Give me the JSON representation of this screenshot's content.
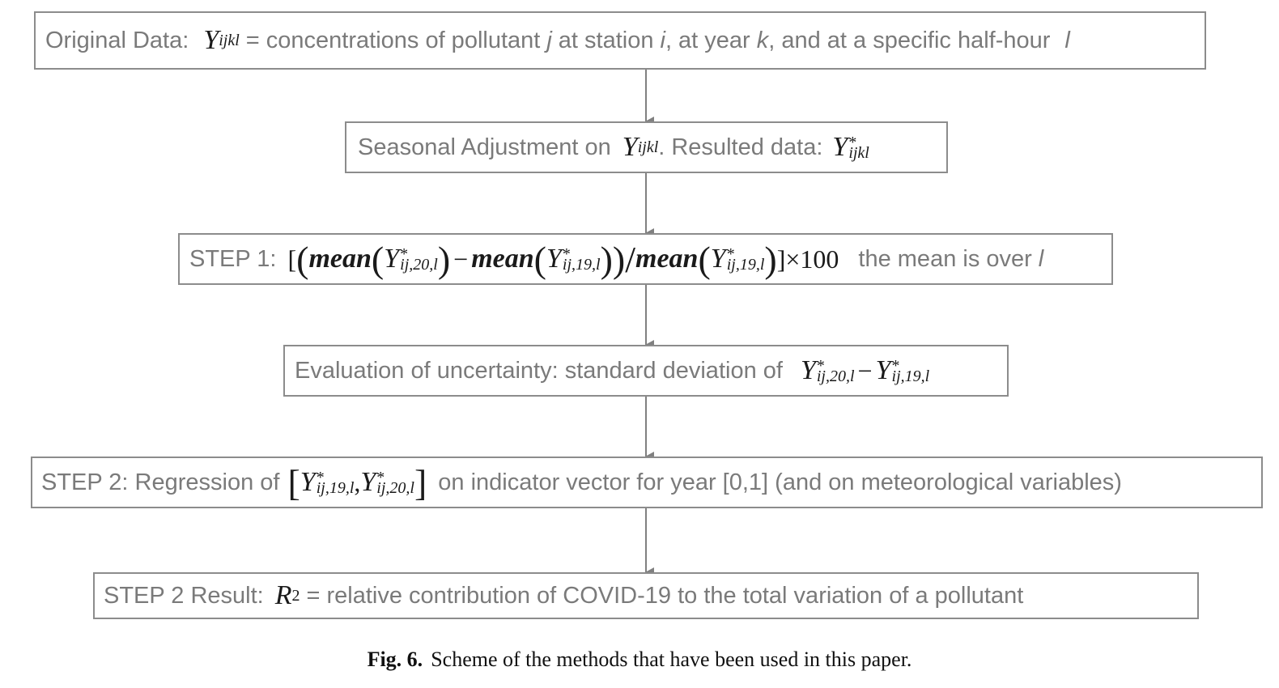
{
  "boxes": {
    "original": {
      "lead": "Original Data:",
      "text": "= concentrations of pollutant",
      "var_j": "j",
      "at_station": "at station",
      "var_i": "i",
      "at_year": ", at year",
      "var_k": "k",
      "tail": ", and at a specific half-hour",
      "var_l": "l"
    },
    "seasonal": {
      "lead": "Seasonal Adjustment on",
      "mid": ". Resulted data:"
    },
    "step1": {
      "lead": "STEP 1:",
      "times100": "×100",
      "tail": "the mean is over",
      "var_l": "l"
    },
    "uncertainty": {
      "lead": "Evaluation of uncertainty: standard deviation of"
    },
    "step2": {
      "lead": "STEP 2: Regression of",
      "tail": "on indicator vector for year [0,1] (and on meteorological variables)"
    },
    "result": {
      "lead": "STEP 2 Result:",
      "tail": "= relative contribution of COVID-19 to the total variation of a pollutant"
    }
  },
  "math": {
    "Y": "Y",
    "R": "R",
    "two": "2",
    "star": "*",
    "ijkl": "ijkl",
    "ij20l": "ij,20,l",
    "ij19l": "ij,19,l",
    "mean": "mean",
    "minus": "−",
    "slash": "/",
    "comma": ","
  },
  "caption": {
    "label": "Fig. 6.",
    "text": "Scheme of the methods that have been used in this paper."
  },
  "colors": {
    "box_border": "#8c8c8c",
    "box_text": "#7a7a7a",
    "math_text": "#1a1a1a",
    "arrow": "#808080"
  }
}
